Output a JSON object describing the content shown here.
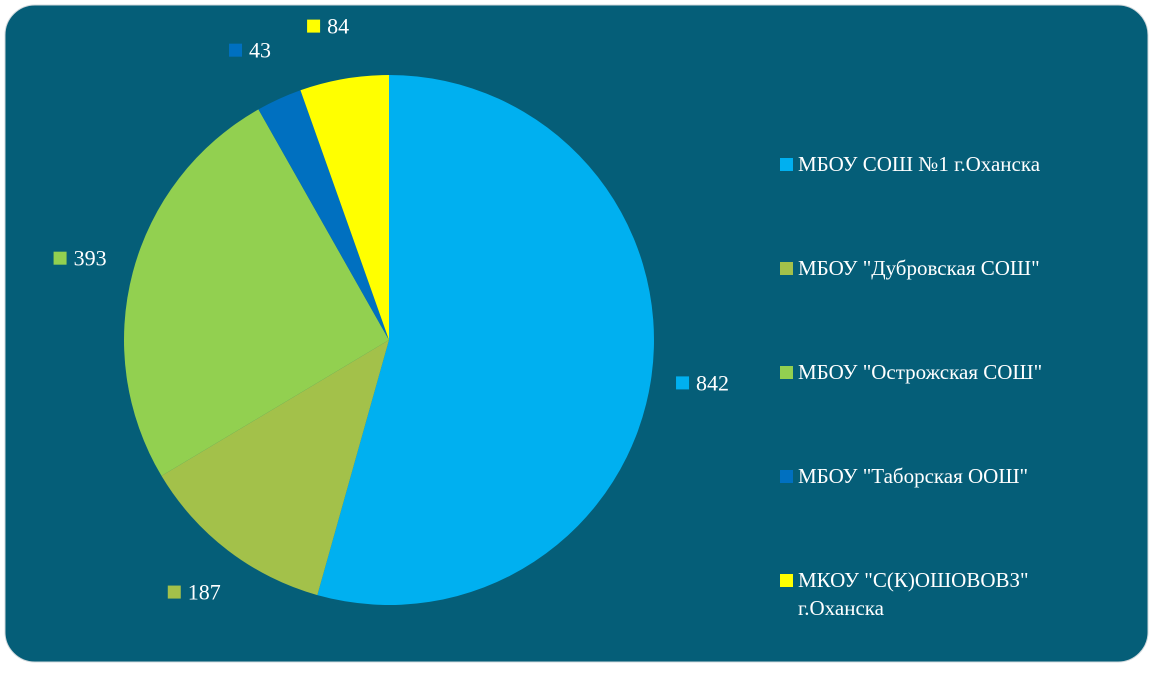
{
  "chart_data": {
    "type": "pie",
    "categories": [
      "МБОУ СОШ №1 г.Оханска",
      "МБОУ \"Дубровская СОШ\"",
      "МБОУ \"Острожская СОШ\"",
      "МБОУ \"Таборская ООШ\"",
      "МКОУ \"С(К)ОШОВОВЗ\"\nг.Оханска"
    ],
    "values": [
      842,
      187,
      393,
      43,
      84
    ],
    "colors": [
      "#00b0f0",
      "#a3c14a",
      "#92d050",
      "#0070c0",
      "#ffff00"
    ],
    "legend": "right"
  }
}
